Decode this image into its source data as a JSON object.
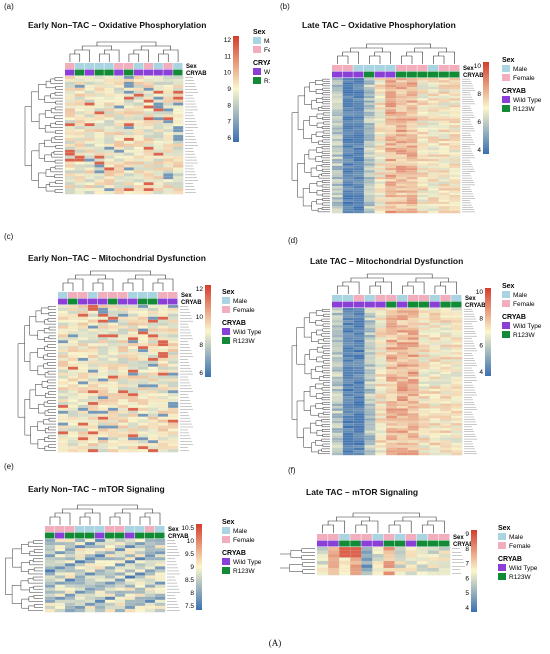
{
  "figure_label": "(A)",
  "legend": {
    "sex_title": "Sex",
    "sex_levels": [
      "Male",
      "Female"
    ],
    "cryab_title": "CRYAB",
    "cryab_levels": [
      "Wild Type",
      "R123W"
    ],
    "annotation_row_labels": [
      "Sex",
      "CRYAB"
    ]
  },
  "colors": {
    "male": "#a9d5e3",
    "female": "#f3aebd",
    "wild_type": "#8a3fd6",
    "r123w": "#138a35",
    "scale_low": "#3b70b0",
    "scale_mid": "#fbf6cc",
    "scale_high": "#d43d2c"
  },
  "panels": [
    {
      "label": "(a)",
      "title": "Early Non–TAC – Oxidative Phosphorylation",
      "scale_ticks": [
        "12",
        "11",
        "10",
        "9",
        "8",
        "7",
        "6"
      ],
      "sex": [
        "F",
        "M",
        "M",
        "M",
        "M",
        "F",
        "F",
        "M",
        "F",
        "M",
        "F",
        "M"
      ],
      "cryab": [
        "W",
        "R",
        "W",
        "R",
        "R",
        "W",
        "R",
        "W",
        "W",
        "W",
        "W",
        "R"
      ]
    },
    {
      "label": "(b)",
      "title": "Late TAC – Oxidative Phosphorylation",
      "scale_ticks": [
        "10",
        "8",
        "6",
        "4"
      ],
      "sex": [
        "F",
        "F",
        "M",
        "M",
        "M",
        "M",
        "F",
        "F",
        "F",
        "M",
        "F",
        "F"
      ],
      "cryab": [
        "W",
        "W",
        "W",
        "R",
        "W",
        "W",
        "R",
        "R",
        "R",
        "R",
        "R",
        "R"
      ]
    },
    {
      "label": "(c)",
      "title": "Early Non–TAC – Mitochondrial Dysfunction",
      "scale_ticks": [
        "12",
        "10",
        "8",
        "6"
      ],
      "sex": [
        "M",
        "F",
        "F",
        "M",
        "F",
        "F",
        "F",
        "M",
        "M",
        "M",
        "F",
        "F"
      ],
      "cryab": [
        "W",
        "R",
        "W",
        "W",
        "W",
        "R",
        "W",
        "W",
        "R",
        "R",
        "W",
        "W"
      ]
    },
    {
      "label": "(d)",
      "title": "Late TAC – Mitochondrial Dysfunction",
      "scale_ticks": [
        "10",
        "8",
        "6",
        "4"
      ],
      "sex": [
        "M",
        "M",
        "F",
        "M",
        "F",
        "F",
        "M",
        "F",
        "F",
        "M",
        "F",
        "M"
      ],
      "cryab": [
        "W",
        "W",
        "W",
        "W",
        "W",
        "R",
        "W",
        "R",
        "R",
        "W",
        "R",
        "R"
      ]
    },
    {
      "label": "(e)",
      "title": "Early Non–TAC – mTOR Signaling",
      "scale_ticks": [
        "10.5",
        "10",
        "9.5",
        "9",
        "8.5",
        "8",
        "7.5"
      ],
      "sex": [
        "F",
        "F",
        "F",
        "M",
        "M",
        "M",
        "F",
        "F",
        "M",
        "M",
        "F",
        "M"
      ],
      "cryab": [
        "R",
        "W",
        "R",
        "R",
        "R",
        "W",
        "R",
        "R",
        "W",
        "R",
        "R",
        "R"
      ]
    },
    {
      "label": "(f)",
      "title": "Late TAC – mTOR Signaling",
      "scale_ticks": [
        "9",
        "8",
        "7",
        "6",
        "5",
        "4"
      ],
      "sex": [
        "F",
        "F",
        "M",
        "F",
        "F",
        "M",
        "F",
        "M",
        "F",
        "M",
        "F",
        "F"
      ],
      "cryab": [
        "W",
        "W",
        "R",
        "R",
        "W",
        "W",
        "R",
        "R",
        "W",
        "R",
        "R",
        "R"
      ]
    }
  ]
}
